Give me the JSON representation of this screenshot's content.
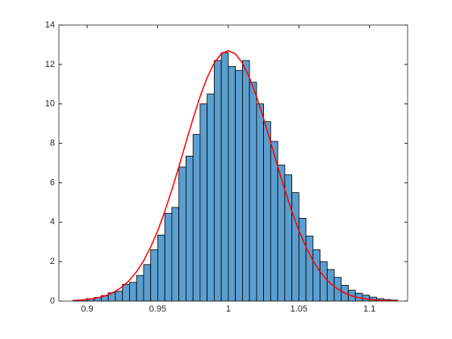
{
  "chart_data": {
    "type": "histogram",
    "bins": [
      0.89,
      0.895,
      0.9,
      0.905,
      0.91,
      0.915,
      0.92,
      0.925,
      0.93,
      0.935,
      0.94,
      0.945,
      0.95,
      0.955,
      0.96,
      0.965,
      0.97,
      0.975,
      0.98,
      0.985,
      0.99,
      0.995,
      1.0,
      1.005,
      1.01,
      1.015,
      1.02,
      1.025,
      1.03,
      1.035,
      1.04,
      1.045,
      1.05,
      1.055,
      1.06,
      1.065,
      1.07,
      1.075,
      1.08,
      1.085,
      1.09,
      1.095,
      1.1,
      1.105,
      1.11,
      1.115,
      1.12
    ],
    "values": [
      0.04,
      0.06,
      0.12,
      0.18,
      0.28,
      0.42,
      0.5,
      0.85,
      0.95,
      1.3,
      1.85,
      2.6,
      3.35,
      4.45,
      4.75,
      6.8,
      7.35,
      8.45,
      10.0,
      10.5,
      12.2,
      12.6,
      11.9,
      11.7,
      12.2,
      11.1,
      10.0,
      9.1,
      8.1,
      6.9,
      6.4,
      5.5,
      4.2,
      3.3,
      2.6,
      2.0,
      1.6,
      1.2,
      0.8,
      0.55,
      0.4,
      0.3,
      0.2,
      0.12,
      0.08,
      0.05
    ],
    "color": "#5b9fd0",
    "edgecolor": "#000000",
    "fit": {
      "type": "line",
      "color": "#ff0000",
      "x": [
        0.89,
        0.895,
        0.9,
        0.905,
        0.91,
        0.915,
        0.92,
        0.925,
        0.93,
        0.935,
        0.94,
        0.945,
        0.95,
        0.955,
        0.96,
        0.965,
        0.97,
        0.975,
        0.98,
        0.985,
        0.99,
        0.995,
        1.0,
        1.005,
        1.01,
        1.015,
        1.02,
        1.025,
        1.03,
        1.035,
        1.04,
        1.045,
        1.05,
        1.055,
        1.06,
        1.065,
        1.07,
        1.075,
        1.08,
        1.085,
        1.09,
        1.095,
        1.1,
        1.105,
        1.11,
        1.115,
        1.12
      ],
      "values": [
        0.027,
        0.047,
        0.08,
        0.131,
        0.209,
        0.325,
        0.495,
        0.733,
        1.058,
        1.49,
        2.045,
        2.74,
        3.57,
        4.55,
        5.64,
        6.82,
        8.05,
        9.25,
        10.37,
        11.33,
        12.07,
        12.54,
        12.7,
        12.54,
        12.07,
        11.33,
        10.37,
        9.25,
        8.05,
        6.82,
        5.64,
        4.55,
        3.57,
        2.74,
        2.045,
        1.49,
        1.058,
        0.733,
        0.495,
        0.325,
        0.209,
        0.131,
        0.08,
        0.047,
        0.027,
        0.0155,
        0.0086
      ]
    },
    "xlim": [
      0.88,
      1.127
    ],
    "ylim": [
      0,
      14
    ],
    "xticks": [
      0.9,
      0.95,
      1,
      1.05,
      1.1
    ],
    "yticks": [
      0,
      2,
      4,
      6,
      8,
      10,
      12,
      14
    ]
  }
}
